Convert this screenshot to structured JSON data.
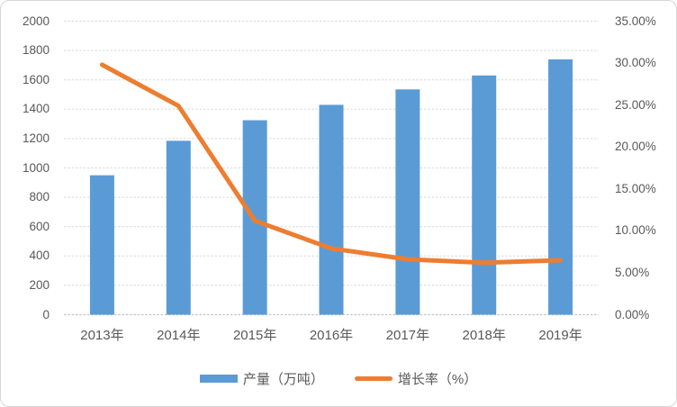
{
  "chart_data": {
    "type": "bar",
    "subtype": "combo-bar-line-dual-axis",
    "title": "",
    "categories": [
      "2013年",
      "2014年",
      "2015年",
      "2016年",
      "2017年",
      "2018年",
      "2019年"
    ],
    "series": [
      {
        "name": "产量（万吨）",
        "type": "bar",
        "axis": "left",
        "color": "#5B9BD5",
        "values": [
          950,
          1185,
          1325,
          1430,
          1535,
          1630,
          1740
        ]
      },
      {
        "name": "增长率（%）",
        "type": "line",
        "axis": "right",
        "color": "#ED7D31",
        "values": [
          29.8,
          24.9,
          11.2,
          7.9,
          6.6,
          6.2,
          6.5
        ]
      }
    ],
    "left_axis": {
      "min": 0,
      "max": 2000,
      "step": 200,
      "tick_labels": [
        "0",
        "200",
        "400",
        "600",
        "800",
        "1000",
        "1200",
        "1400",
        "1600",
        "1800",
        "2000"
      ]
    },
    "right_axis": {
      "min": 0,
      "max": 35,
      "step": 5,
      "tick_labels": [
        "0.00%",
        "5.00%",
        "10.00%",
        "15.00%",
        "20.00%",
        "25.00%",
        "30.00%",
        "35.00%"
      ]
    },
    "grid": "horizontal-dotted",
    "legend_position": "bottom"
  },
  "colors": {
    "bar": "#5B9BD5",
    "line": "#ED7D31",
    "axis_text": "#595959",
    "gridline": "#D9D9D9",
    "axis_line": "#C3C3C3",
    "card_border": "#D5D5D5",
    "background": "#FFFFFF"
  }
}
